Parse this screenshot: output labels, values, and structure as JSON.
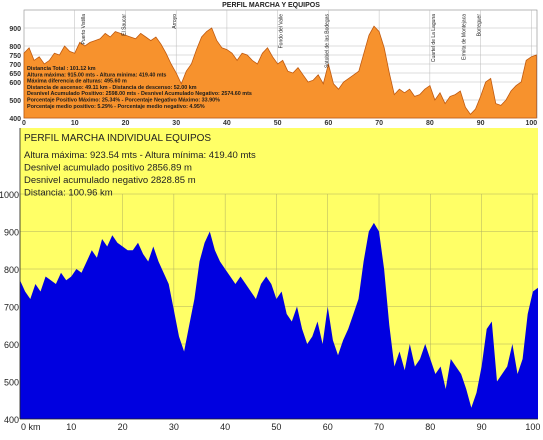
{
  "chart_data": [
    {
      "type": "area",
      "title": "PERFIL MARCHA Y EQUIPOS",
      "ylim": [
        400,
        1000
      ],
      "xlim": [
        0,
        101.12
      ],
      "yticks": [
        400,
        500,
        600,
        650,
        700,
        750,
        800,
        900
      ],
      "xticks": [
        0,
        10,
        20,
        30,
        40,
        50,
        60,
        70,
        80,
        90,
        100
      ],
      "grid": true,
      "fill_color": "#f7922d",
      "stroke_color": "#c05a10",
      "background_color": "#ffffff",
      "stats_lines": [
        "Distancia Total : 101.12 km",
        "Altura máxima: 915.00 mts - Altura mínima: 419.40 mts",
        "Máxima diferencia de alturas: 495.60 m",
        "Distancia de ascenso: 49.11 km - Distancia de descenso: 52.00 km",
        "Desnivel Acumulado Positivo: 2598.00 mts - Desnivel Acumulado Negativo: 2574.60 mts",
        "Porcentaje Positivo Máximo: 25.34% - Porcentaje Negativo Máximo: 33.90%",
        "Porcentaje medio positivo: 5.29% - Porcentaje medio negativo: 4.95%"
      ],
      "waypoints": [
        {
          "label": "Puerto Vistilla",
          "x": 12
        },
        {
          "label": "El Saucar",
          "x": 20
        },
        {
          "label": "Arroyo",
          "x": 30
        },
        {
          "label": "Fondo del Valle",
          "x": 51
        },
        {
          "label": "Sotobiel de las Bodegas",
          "x": 60
        },
        {
          "label": "Cuartel de La Laguna",
          "x": 81
        },
        {
          "label": "Ermita de Montejaca",
          "x": 87
        },
        {
          "label": "Borreguer",
          "x": 90
        }
      ],
      "x": [
        0,
        1,
        2,
        3,
        4,
        5,
        6,
        7,
        8,
        9,
        10,
        11,
        12,
        13,
        14,
        15,
        16,
        17,
        18,
        19,
        20,
        21,
        22,
        23,
        24,
        25,
        26,
        27,
        28,
        29,
        30,
        31,
        32,
        33,
        34,
        35,
        36,
        37,
        38,
        39,
        40,
        41,
        42,
        43,
        44,
        45,
        46,
        47,
        48,
        49,
        50,
        51,
        52,
        53,
        54,
        55,
        56,
        57,
        58,
        59,
        60,
        61,
        62,
        63,
        64,
        65,
        66,
        67,
        68,
        69,
        70,
        71,
        72,
        73,
        74,
        75,
        76,
        77,
        78,
        79,
        80,
        81,
        82,
        83,
        84,
        85,
        86,
        87,
        88,
        89,
        90,
        91,
        92,
        93,
        94,
        95,
        96,
        97,
        98,
        99,
        100,
        101
      ],
      "y": [
        760,
        790,
        720,
        740,
        700,
        720,
        760,
        750,
        800,
        770,
        760,
        820,
        800,
        820,
        830,
        840,
        870,
        850,
        880,
        870,
        860,
        850,
        840,
        870,
        850,
        830,
        850,
        810,
        760,
        700,
        650,
        590,
        660,
        700,
        780,
        850,
        880,
        900,
        830,
        790,
        780,
        760,
        720,
        760,
        750,
        720,
        700,
        760,
        790,
        740,
        700,
        720,
        660,
        650,
        680,
        640,
        600,
        610,
        640,
        590,
        700,
        590,
        560,
        600,
        620,
        640,
        660,
        760,
        860,
        910,
        880,
        790,
        650,
        530,
        560,
        540,
        560,
        520,
        530,
        560,
        580,
        500,
        540,
        480,
        520,
        530,
        550,
        460,
        420,
        450,
        520,
        600,
        620,
        480,
        470,
        500,
        550,
        580,
        600,
        720,
        740,
        750
      ]
    },
    {
      "type": "area",
      "title": "PERFIL MARCHA INDIVIDUAL EQUIPOS",
      "ylim": [
        400,
        1000
      ],
      "xlim": [
        0,
        101
      ],
      "yticks": [
        400,
        500,
        600,
        700,
        800,
        900,
        1000
      ],
      "xticks": [
        0,
        10,
        20,
        30,
        40,
        50,
        60,
        70,
        80,
        90,
        100
      ],
      "x_unit": "km",
      "grid": true,
      "fill_color": "#0000e0",
      "background_color": "#ffff66",
      "stats_lines": [
        "Altura máxima: 923.54 mts - Altura mínima: 419.40 mts",
        "Desnivel acumulado positivo 2856.89 m",
        "Desnivel acumulado negativo 2828.85 m",
        "Distancia: 100.96 km"
      ],
      "x": [
        0,
        1,
        2,
        3,
        4,
        5,
        6,
        7,
        8,
        9,
        10,
        11,
        12,
        13,
        14,
        15,
        16,
        17,
        18,
        19,
        20,
        21,
        22,
        23,
        24,
        25,
        26,
        27,
        28,
        29,
        30,
        31,
        32,
        33,
        34,
        35,
        36,
        37,
        38,
        39,
        40,
        41,
        42,
        43,
        44,
        45,
        46,
        47,
        48,
        49,
        50,
        51,
        52,
        53,
        54,
        55,
        56,
        57,
        58,
        59,
        60,
        61,
        62,
        63,
        64,
        65,
        66,
        67,
        68,
        69,
        70,
        71,
        72,
        73,
        74,
        75,
        76,
        77,
        78,
        79,
        80,
        81,
        82,
        83,
        84,
        85,
        86,
        87,
        88,
        89,
        90,
        91,
        92,
        93,
        94,
        95,
        96,
        97,
        98,
        99,
        100,
        101
      ],
      "y": [
        770,
        740,
        720,
        760,
        740,
        780,
        770,
        760,
        790,
        770,
        780,
        800,
        790,
        820,
        850,
        830,
        880,
        860,
        890,
        870,
        860,
        850,
        850,
        870,
        840,
        820,
        860,
        820,
        790,
        760,
        690,
        620,
        580,
        650,
        720,
        820,
        870,
        900,
        850,
        820,
        800,
        780,
        760,
        780,
        760,
        740,
        720,
        760,
        780,
        760,
        720,
        740,
        680,
        660,
        700,
        640,
        600,
        620,
        660,
        600,
        700,
        610,
        570,
        610,
        640,
        680,
        720,
        820,
        900,
        923,
        900,
        800,
        650,
        540,
        580,
        530,
        600,
        540,
        560,
        600,
        560,
        520,
        540,
        480,
        560,
        540,
        520,
        480,
        430,
        470,
        540,
        640,
        660,
        500,
        520,
        540,
        600,
        520,
        560,
        680,
        740,
        750
      ]
    }
  ]
}
